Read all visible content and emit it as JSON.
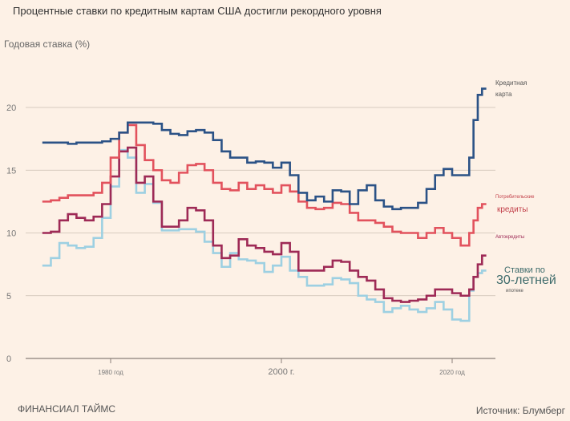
{
  "chart_data": {
    "type": "line",
    "title": "Процентные ставки по кредитным картам США достигли рекордного уровня",
    "ylabel": "Годовая ставка (%)",
    "xlabel": "",
    "ylim": [
      0,
      22
    ],
    "xlim": [
      1972,
      2024
    ],
    "yticks": [
      "0",
      "5",
      "10",
      "15",
      "20"
    ],
    "ytick_values": [
      0,
      5,
      10,
      15,
      20
    ],
    "xticks": [
      "1980 год",
      "2000 г.",
      "2020 год"
    ],
    "xtick_values": [
      1980,
      2000,
      2020
    ],
    "grid": "horizontal",
    "step": true,
    "x": [
      1972,
      1973,
      1974,
      1975,
      1976,
      1977,
      1978,
      1979,
      1980,
      1981,
      1982,
      1983,
      1984,
      1985,
      1986,
      1987,
      1988,
      1989,
      1990,
      1991,
      1992,
      1993,
      1994,
      1995,
      1996,
      1997,
      1998,
      1999,
      2000,
      2001,
      2002,
      2003,
      2004,
      2005,
      2006,
      2007,
      2008,
      2009,
      2010,
      2011,
      2012,
      2013,
      2014,
      2015,
      2016,
      2017,
      2018,
      2019,
      2020,
      2021,
      2022,
      2022.5,
      2023,
      2023.5
    ],
    "series": [
      {
        "name": "Кредитная карта",
        "color": "#2b5286",
        "values": [
          17.2,
          17.2,
          17.2,
          17.1,
          17.2,
          17.2,
          17.2,
          17.3,
          17.5,
          18.0,
          18.8,
          18.8,
          18.8,
          18.7,
          18.2,
          17.9,
          17.8,
          18.1,
          18.2,
          18.0,
          17.4,
          16.5,
          16.0,
          16.0,
          15.6,
          15.7,
          15.6,
          15.2,
          15.6,
          14.6,
          13.2,
          12.6,
          12.9,
          12.5,
          13.4,
          13.3,
          12.3,
          13.4,
          13.8,
          12.6,
          12.1,
          11.9,
          12.0,
          12.0,
          12.4,
          13.5,
          14.6,
          15.1,
          14.6,
          14.6,
          16.0,
          19.0,
          21.0,
          21.5
        ]
      },
      {
        "name": "Потребительские кредиты",
        "color": "#e2525d",
        "values": [
          12.5,
          12.6,
          12.8,
          13.0,
          13.0,
          13.0,
          13.2,
          14.0,
          16.0,
          18.0,
          18.6,
          17.0,
          15.8,
          15.0,
          14.2,
          14.0,
          14.8,
          15.4,
          15.5,
          15.0,
          14.0,
          13.5,
          13.4,
          14.0,
          13.5,
          13.8,
          13.5,
          13.2,
          13.8,
          13.3,
          12.5,
          12.0,
          11.9,
          12.0,
          12.4,
          12.3,
          11.6,
          11.0,
          11.0,
          10.8,
          10.5,
          10.1,
          10.0,
          10.0,
          9.6,
          10.0,
          10.4,
          10.0,
          9.6,
          9.0,
          10.0,
          11.0,
          12.0,
          12.3
        ]
      },
      {
        "name": "Автокредиты",
        "color": "#9e2a56",
        "values": [
          10.0,
          10.1,
          11.0,
          11.5,
          11.2,
          11.0,
          11.3,
          12.3,
          14.5,
          16.5,
          16.8,
          14.0,
          14.5,
          12.5,
          10.5,
          10.5,
          11.0,
          12.0,
          11.8,
          11.0,
          9.0,
          8.0,
          8.2,
          9.5,
          9.0,
          8.8,
          8.5,
          8.3,
          9.2,
          8.5,
          7.0,
          7.0,
          7.0,
          7.3,
          7.8,
          7.7,
          7.0,
          6.5,
          6.2,
          5.5,
          4.8,
          4.6,
          4.5,
          4.6,
          4.7,
          5.0,
          5.5,
          5.5,
          5.2,
          5.0,
          5.5,
          6.5,
          7.5,
          8.2
        ]
      },
      {
        "name": "Ставки по 30-летней ипотеке",
        "color": "#9dd0e2",
        "values": [
          7.4,
          8.0,
          9.2,
          9.0,
          8.8,
          8.9,
          9.6,
          11.2,
          13.7,
          16.6,
          16.0,
          13.2,
          13.9,
          12.4,
          10.2,
          10.2,
          10.3,
          10.3,
          10.1,
          9.3,
          8.4,
          7.3,
          8.4,
          7.9,
          7.8,
          7.6,
          6.9,
          7.4,
          8.1,
          7.0,
          6.5,
          5.8,
          5.8,
          5.9,
          6.4,
          6.3,
          6.0,
          5.0,
          4.7,
          4.5,
          3.7,
          4.0,
          4.2,
          3.9,
          3.7,
          4.0,
          4.5,
          3.9,
          3.1,
          3.0,
          5.4,
          6.5,
          6.8,
          7.0
        ]
      }
    ],
    "annotations": {
      "credit_card_1": "Кредитная",
      "credit_card_2": "карта",
      "consumer_1": "Потребительские",
      "consumer_2": "кредиты",
      "auto": "Автокредиты",
      "mortgage_1": "Ставки по",
      "mortgage_2": "30-летней",
      "mortgage_3": "ипотеке"
    }
  },
  "footer": {
    "brand": "ФИНАНСИАЛ ТАЙМС",
    "source": "Источник: Блумберг"
  }
}
